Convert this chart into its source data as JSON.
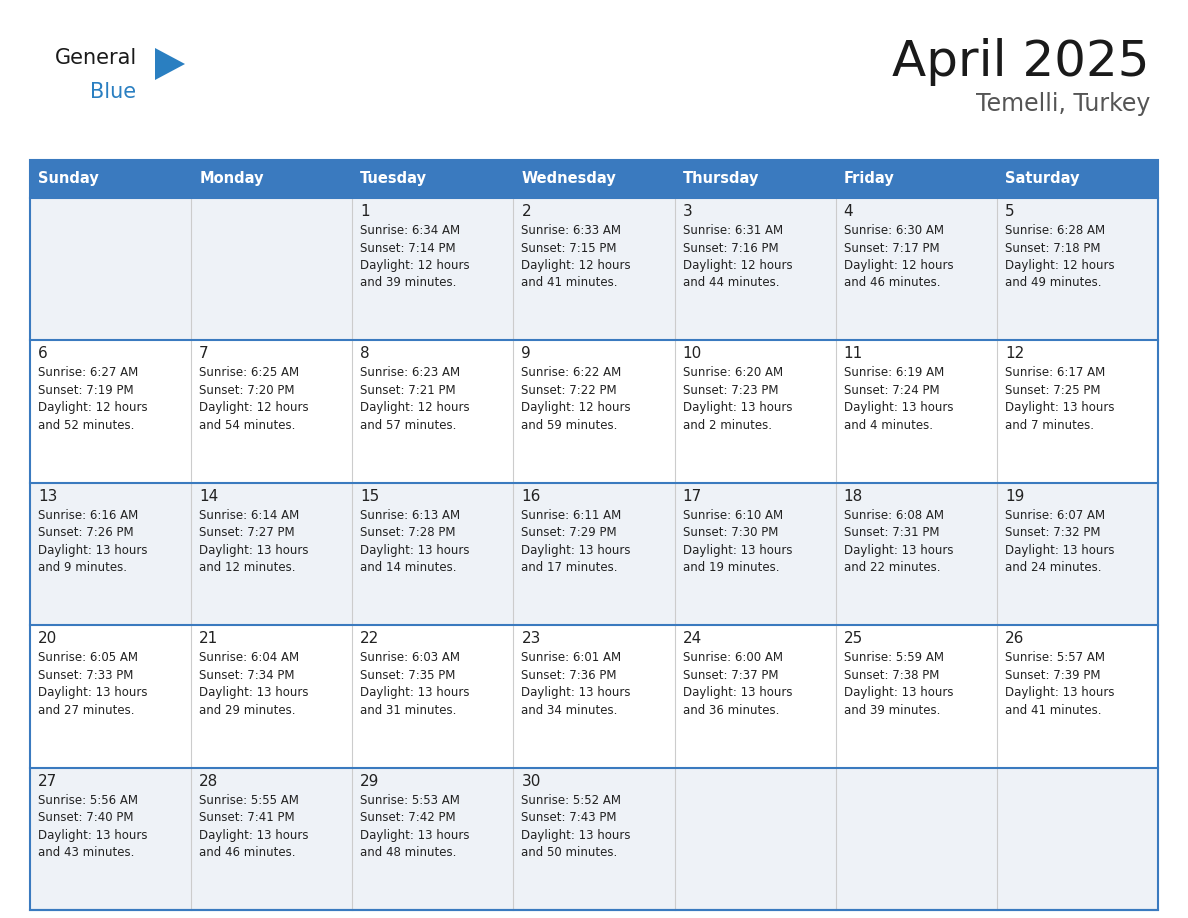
{
  "title": "April 2025",
  "subtitle": "Temelli, Turkey",
  "header_bg": "#3a7abf",
  "header_text_color": "#ffffff",
  "cell_bg_even": "#eef2f7",
  "cell_bg_odd": "#ffffff",
  "row_sep_color": "#3a7abf",
  "col_sep_color": "#cccccc",
  "text_color": "#222222",
  "day_headers": [
    "Sunday",
    "Monday",
    "Tuesday",
    "Wednesday",
    "Thursday",
    "Friday",
    "Saturday"
  ],
  "logo_black_color": "#1a1a1a",
  "logo_blue_color": "#2a7fc1",
  "weeks": [
    [
      {
        "day": "",
        "sunrise": "",
        "sunset": "",
        "daylight": ""
      },
      {
        "day": "",
        "sunrise": "",
        "sunset": "",
        "daylight": ""
      },
      {
        "day": "1",
        "sunrise": "Sunrise: 6:34 AM",
        "sunset": "Sunset: 7:14 PM",
        "daylight": "Daylight: 12 hours\nand 39 minutes."
      },
      {
        "day": "2",
        "sunrise": "Sunrise: 6:33 AM",
        "sunset": "Sunset: 7:15 PM",
        "daylight": "Daylight: 12 hours\nand 41 minutes."
      },
      {
        "day": "3",
        "sunrise": "Sunrise: 6:31 AM",
        "sunset": "Sunset: 7:16 PM",
        "daylight": "Daylight: 12 hours\nand 44 minutes."
      },
      {
        "day": "4",
        "sunrise": "Sunrise: 6:30 AM",
        "sunset": "Sunset: 7:17 PM",
        "daylight": "Daylight: 12 hours\nand 46 minutes."
      },
      {
        "day": "5",
        "sunrise": "Sunrise: 6:28 AM",
        "sunset": "Sunset: 7:18 PM",
        "daylight": "Daylight: 12 hours\nand 49 minutes."
      }
    ],
    [
      {
        "day": "6",
        "sunrise": "Sunrise: 6:27 AM",
        "sunset": "Sunset: 7:19 PM",
        "daylight": "Daylight: 12 hours\nand 52 minutes."
      },
      {
        "day": "7",
        "sunrise": "Sunrise: 6:25 AM",
        "sunset": "Sunset: 7:20 PM",
        "daylight": "Daylight: 12 hours\nand 54 minutes."
      },
      {
        "day": "8",
        "sunrise": "Sunrise: 6:23 AM",
        "sunset": "Sunset: 7:21 PM",
        "daylight": "Daylight: 12 hours\nand 57 minutes."
      },
      {
        "day": "9",
        "sunrise": "Sunrise: 6:22 AM",
        "sunset": "Sunset: 7:22 PM",
        "daylight": "Daylight: 12 hours\nand 59 minutes."
      },
      {
        "day": "10",
        "sunrise": "Sunrise: 6:20 AM",
        "sunset": "Sunset: 7:23 PM",
        "daylight": "Daylight: 13 hours\nand 2 minutes."
      },
      {
        "day": "11",
        "sunrise": "Sunrise: 6:19 AM",
        "sunset": "Sunset: 7:24 PM",
        "daylight": "Daylight: 13 hours\nand 4 minutes."
      },
      {
        "day": "12",
        "sunrise": "Sunrise: 6:17 AM",
        "sunset": "Sunset: 7:25 PM",
        "daylight": "Daylight: 13 hours\nand 7 minutes."
      }
    ],
    [
      {
        "day": "13",
        "sunrise": "Sunrise: 6:16 AM",
        "sunset": "Sunset: 7:26 PM",
        "daylight": "Daylight: 13 hours\nand 9 minutes."
      },
      {
        "day": "14",
        "sunrise": "Sunrise: 6:14 AM",
        "sunset": "Sunset: 7:27 PM",
        "daylight": "Daylight: 13 hours\nand 12 minutes."
      },
      {
        "day": "15",
        "sunrise": "Sunrise: 6:13 AM",
        "sunset": "Sunset: 7:28 PM",
        "daylight": "Daylight: 13 hours\nand 14 minutes."
      },
      {
        "day": "16",
        "sunrise": "Sunrise: 6:11 AM",
        "sunset": "Sunset: 7:29 PM",
        "daylight": "Daylight: 13 hours\nand 17 minutes."
      },
      {
        "day": "17",
        "sunrise": "Sunrise: 6:10 AM",
        "sunset": "Sunset: 7:30 PM",
        "daylight": "Daylight: 13 hours\nand 19 minutes."
      },
      {
        "day": "18",
        "sunrise": "Sunrise: 6:08 AM",
        "sunset": "Sunset: 7:31 PM",
        "daylight": "Daylight: 13 hours\nand 22 minutes."
      },
      {
        "day": "19",
        "sunrise": "Sunrise: 6:07 AM",
        "sunset": "Sunset: 7:32 PM",
        "daylight": "Daylight: 13 hours\nand 24 minutes."
      }
    ],
    [
      {
        "day": "20",
        "sunrise": "Sunrise: 6:05 AM",
        "sunset": "Sunset: 7:33 PM",
        "daylight": "Daylight: 13 hours\nand 27 minutes."
      },
      {
        "day": "21",
        "sunrise": "Sunrise: 6:04 AM",
        "sunset": "Sunset: 7:34 PM",
        "daylight": "Daylight: 13 hours\nand 29 minutes."
      },
      {
        "day": "22",
        "sunrise": "Sunrise: 6:03 AM",
        "sunset": "Sunset: 7:35 PM",
        "daylight": "Daylight: 13 hours\nand 31 minutes."
      },
      {
        "day": "23",
        "sunrise": "Sunrise: 6:01 AM",
        "sunset": "Sunset: 7:36 PM",
        "daylight": "Daylight: 13 hours\nand 34 minutes."
      },
      {
        "day": "24",
        "sunrise": "Sunrise: 6:00 AM",
        "sunset": "Sunset: 7:37 PM",
        "daylight": "Daylight: 13 hours\nand 36 minutes."
      },
      {
        "day": "25",
        "sunrise": "Sunrise: 5:59 AM",
        "sunset": "Sunset: 7:38 PM",
        "daylight": "Daylight: 13 hours\nand 39 minutes."
      },
      {
        "day": "26",
        "sunrise": "Sunrise: 5:57 AM",
        "sunset": "Sunset: 7:39 PM",
        "daylight": "Daylight: 13 hours\nand 41 minutes."
      }
    ],
    [
      {
        "day": "27",
        "sunrise": "Sunrise: 5:56 AM",
        "sunset": "Sunset: 7:40 PM",
        "daylight": "Daylight: 13 hours\nand 43 minutes."
      },
      {
        "day": "28",
        "sunrise": "Sunrise: 5:55 AM",
        "sunset": "Sunset: 7:41 PM",
        "daylight": "Daylight: 13 hours\nand 46 minutes."
      },
      {
        "day": "29",
        "sunrise": "Sunrise: 5:53 AM",
        "sunset": "Sunset: 7:42 PM",
        "daylight": "Daylight: 13 hours\nand 48 minutes."
      },
      {
        "day": "30",
        "sunrise": "Sunrise: 5:52 AM",
        "sunset": "Sunset: 7:43 PM",
        "daylight": "Daylight: 13 hours\nand 50 minutes."
      },
      {
        "day": "",
        "sunrise": "",
        "sunset": "",
        "daylight": ""
      },
      {
        "day": "",
        "sunrise": "",
        "sunset": "",
        "daylight": ""
      },
      {
        "day": "",
        "sunrise": "",
        "sunset": "",
        "daylight": ""
      }
    ]
  ]
}
